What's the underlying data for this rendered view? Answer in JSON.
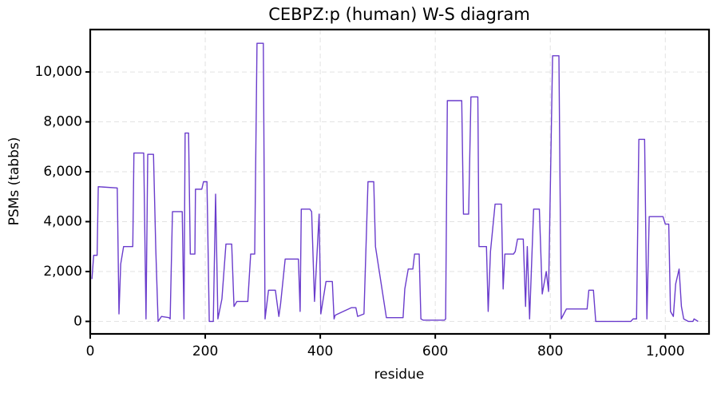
{
  "chart_data": {
    "type": "line",
    "title": "CEBPZ:p (human) W-S diagram",
    "x_label": "residue",
    "y_label": "PSMs (tabbs)",
    "color": "#6a3ccc",
    "grid": true,
    "xlim": [
      0,
      1076
    ],
    "ylim": [
      -500,
      11700
    ],
    "xticks": [
      0,
      200,
      400,
      600,
      800,
      {
        "value": 1000,
        "label": "1,000"
      }
    ],
    "yticks": [
      0,
      {
        "value": 2000,
        "label": "2,000"
      },
      {
        "value": 4000,
        "label": "4,000"
      },
      {
        "value": 6000,
        "label": "6,000"
      },
      {
        "value": 8000,
        "label": "8,000"
      },
      {
        "value": 10000,
        "label": "10,000"
      }
    ],
    "x": [
      3,
      6,
      12,
      14,
      47,
      50,
      53,
      58,
      74,
      76,
      93,
      97,
      100,
      110,
      114,
      118,
      124,
      137,
      139,
      143,
      160,
      163,
      165,
      171,
      174,
      182,
      183,
      194,
      197,
      203,
      207,
      214,
      218,
      222,
      229,
      236,
      246,
      250,
      255,
      274,
      279,
      286,
      290,
      301,
      304,
      310,
      322,
      328,
      331,
      339,
      362,
      365,
      367,
      382,
      385,
      390,
      393,
      398,
      401,
      410,
      421,
      424,
      426,
      440,
      454,
      462,
      465,
      476,
      483,
      493,
      496,
      515,
      544,
      547,
      553,
      561,
      564,
      572,
      575,
      579,
      616,
      618,
      621,
      646,
      649,
      658,
      662,
      674,
      676,
      689,
      692,
      696,
      704,
      715,
      718,
      721,
      736,
      739,
      743,
      753,
      757,
      760,
      764,
      771,
      781,
      786,
      793,
      797,
      804,
      815,
      819,
      828,
      864,
      867,
      875,
      879,
      940,
      944,
      950,
      954,
      964,
      968,
      972,
      996,
      1000,
      1006,
      1009,
      1014,
      1018,
      1024,
      1028,
      1032,
      1040,
      1048,
      1050,
      1057
    ],
    "values": [
      1700,
      2650,
      2650,
      5400,
      5350,
      300,
      2300,
      3000,
      3000,
      6750,
      6750,
      100,
      6700,
      6700,
      2900,
      0,
      200,
      150,
      100,
      4400,
      4400,
      100,
      7550,
      7550,
      2700,
      2700,
      5300,
      5300,
      5600,
      5600,
      0,
      0,
      5100,
      100,
      900,
      3100,
      3100,
      600,
      800,
      800,
      2700,
      2700,
      11150,
      11150,
      100,
      1250,
      1250,
      200,
      700,
      2500,
      2500,
      400,
      4500,
      4500,
      4400,
      800,
      2100,
      4300,
      300,
      1600,
      1600,
      100,
      250,
      400,
      550,
      550,
      200,
      300,
      5600,
      5600,
      3000,
      150,
      150,
      1300,
      2100,
      2100,
      2700,
      2700,
      100,
      50,
      50,
      100,
      8850,
      8850,
      4300,
      4300,
      9000,
      9000,
      3000,
      3000,
      400,
      2800,
      4700,
      4700,
      1300,
      2700,
      2700,
      2800,
      3300,
      3300,
      600,
      3000,
      100,
      4500,
      4500,
      1100,
      2000,
      1200,
      10650,
      10650,
      100,
      500,
      500,
      1250,
      1250,
      0,
      0,
      100,
      100,
      7300,
      7300,
      100,
      4200,
      4200,
      3900,
      3900,
      400,
      200,
      1500,
      2100,
      600,
      100,
      0,
      0,
      100,
      0
    ]
  }
}
